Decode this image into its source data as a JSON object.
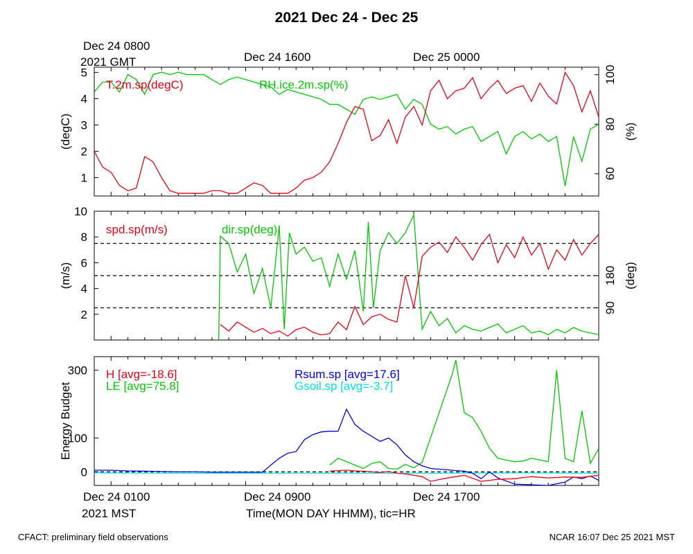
{
  "title": "2021 Dec 24 - Dec 25",
  "top_time_labels": [
    {
      "line1": "Dec 24 0800",
      "line2": "2021 GMT"
    },
    {
      "line1": "Dec 24 1600",
      "line2": ""
    },
    {
      "line1": "Dec 25 0000",
      "line2": ""
    }
  ],
  "bottom_time_labels": [
    {
      "line1": "Dec 24 0100",
      "line2": "2021 MST"
    },
    {
      "line1": "Dec 24 0900",
      "line2": ""
    },
    {
      "line1": "Dec 24 1700",
      "line2": ""
    }
  ],
  "xaxis_label": "Time(MON DAY HHMM), tic=HR",
  "footer_left": "CFACT: preliminary field observations",
  "footer_right": "NCAR 16:07 Dec 25 2021 MST",
  "colors": {
    "red": "#e8001a",
    "green": "#00c800",
    "blue": "#0000e0",
    "cyan": "#00e0e0"
  },
  "chart_data": [
    {
      "type": "line",
      "panel": "temperature_rh",
      "ylabel_left": "(degC)",
      "ylabel_right": "(%)",
      "ylim_left": [
        0.3,
        5.2
      ],
      "yticks_left": [
        1,
        2,
        3,
        4,
        5
      ],
      "ylim_right": [
        51,
        103
      ],
      "yticks_right": [
        60,
        80,
        100
      ],
      "series": [
        {
          "name": "T.2m.sp(degC)",
          "axis": "left",
          "color": "#e8001a",
          "x": [
            0,
            0.5,
            1,
            1.5,
            2,
            2.5,
            3,
            3.5,
            4,
            4.5,
            5,
            5.5,
            6,
            6.5,
            7,
            7.5,
            8,
            8.5,
            9,
            9.5,
            10,
            10.5,
            11,
            11.5,
            12,
            12.5,
            13,
            13.5,
            14,
            14.5,
            15,
            15.5,
            16,
            16.5,
            17,
            17.5,
            18,
            18.5,
            19,
            19.5,
            20,
            20.5,
            21,
            21.5,
            22,
            22.5,
            23,
            23.5,
            24,
            24.5,
            25,
            25.5,
            26,
            26.5,
            27,
            27.5,
            28,
            28.5,
            29,
            29.5,
            30
          ],
          "values": [
            2.0,
            1.4,
            1.2,
            0.7,
            0.5,
            0.6,
            1.8,
            1.6,
            1.0,
            0.5,
            0.4,
            0.4,
            0.4,
            0.4,
            0.5,
            0.5,
            0.4,
            0.4,
            0.6,
            0.8,
            0.7,
            0.4,
            0.4,
            0.4,
            0.6,
            0.9,
            1.0,
            1.2,
            1.6,
            2.3,
            3.1,
            3.7,
            3.6,
            2.4,
            2.6,
            3.2,
            2.3,
            3.3,
            3.7,
            3.0,
            4.3,
            4.7,
            4.0,
            4.3,
            4.4,
            4.8,
            4.0,
            4.4,
            4.7,
            4.2,
            4.4,
            4.5,
            3.9,
            4.6,
            4.1,
            3.8,
            5.0,
            4.5,
            3.5,
            4.3,
            3.3
          ]
        },
        {
          "name": "RH.ice.2m.sp(%)",
          "axis": "right",
          "color": "#00c800",
          "x": [
            0,
            0.5,
            1,
            1.5,
            2,
            2.5,
            3,
            3.5,
            4,
            4.5,
            5,
            5.5,
            6,
            6.5,
            7,
            7.5,
            8,
            8.5,
            9,
            9.5,
            10,
            10.5,
            11,
            11.5,
            12,
            12.5,
            13,
            13.5,
            14,
            14.5,
            15,
            15.5,
            16,
            16.5,
            17,
            17.5,
            18,
            18.5,
            19,
            19.5,
            20,
            20.5,
            21,
            21.5,
            22,
            22.5,
            23,
            23.5,
            24,
            24.5,
            25,
            25.5,
            26,
            26.5,
            27,
            27.5,
            28,
            28.5,
            29,
            29.5,
            30
          ],
          "values": [
            93,
            97,
            97,
            93,
            100,
            98,
            92,
            100,
            101,
            100,
            101,
            100,
            100,
            100,
            98,
            96,
            98,
            99,
            98,
            97,
            96,
            95,
            92,
            94,
            93,
            92,
            91,
            90,
            88,
            88,
            86,
            84,
            90,
            91,
            90,
            91,
            92,
            86,
            90,
            88,
            80,
            78,
            79,
            76,
            78,
            79,
            73,
            75,
            77,
            68,
            75,
            77,
            74,
            76,
            73,
            75,
            55,
            75,
            65,
            78,
            80
          ]
        }
      ]
    },
    {
      "type": "line",
      "panel": "wind",
      "ylabel_left": "(m/s)",
      "ylabel_right": "(deg)",
      "ylim_left": [
        0,
        10
      ],
      "yticks_left": [
        2,
        4,
        6,
        8,
        10
      ],
      "ylim_right": [
        0,
        360
      ],
      "yticks_right": [
        90,
        180
      ],
      "reference_lines_deg": [
        90,
        180,
        270
      ],
      "series": [
        {
          "name": "spd.sp(m/s)",
          "axis": "left",
          "color": "#e8001a",
          "x": [
            7.5,
            8,
            8.5,
            9,
            9.5,
            10,
            10.5,
            11,
            11.5,
            12,
            12.5,
            13,
            13.5,
            14,
            14.5,
            15,
            15.5,
            16,
            16.5,
            17,
            17.5,
            18,
            18.5,
            19,
            19.5,
            20,
            20.5,
            21,
            21.5,
            22,
            22.5,
            23,
            23.5,
            24,
            24.5,
            25,
            25.5,
            26,
            26.5,
            27,
            27.5,
            28,
            28.5,
            29,
            29.5,
            30
          ],
          "values": [
            1.2,
            0.7,
            1.4,
            1.0,
            0.6,
            0.9,
            0.5,
            0.7,
            0.3,
            0.8,
            1.0,
            0.6,
            0.4,
            0.5,
            1.4,
            0.8,
            2.6,
            1.2,
            1.8,
            2.0,
            1.6,
            1.4,
            5.0,
            2.5,
            6.5,
            7.2,
            7.6,
            6.8,
            8.0,
            7.2,
            6.2,
            7.4,
            8.2,
            6.0,
            7.4,
            6.4,
            8.0,
            6.6,
            7.5,
            5.5,
            7.0,
            6.2,
            7.8,
            6.6,
            7.5,
            8.2
          ]
        },
        {
          "name": "dir.sp(deg)",
          "axis": "right",
          "color": "#00c800",
          "x": [
            7.4,
            7.5,
            8,
            8.5,
            9,
            9.5,
            10,
            10.5,
            11,
            11.3,
            11.6,
            12,
            12.5,
            13,
            13.5,
            14,
            14.5,
            15,
            15.5,
            16,
            16.3,
            16.6,
            17,
            17.5,
            18,
            18.5,
            19,
            19.5,
            20,
            20.5,
            21,
            21.5,
            22,
            22.5,
            23,
            23.5,
            24,
            24.5,
            25,
            25.5,
            26,
            26.5,
            27,
            27.5,
            28,
            28.5,
            29,
            29.5,
            30
          ],
          "values": [
            0,
            290,
            270,
            190,
            240,
            130,
            200,
            90,
            320,
            30,
            300,
            240,
            260,
            220,
            230,
            150,
            240,
            170,
            250,
            80,
            330,
            90,
            250,
            300,
            270,
            300,
            350,
            30,
            80,
            40,
            60,
            20,
            40,
            30,
            25,
            35,
            45,
            20,
            30,
            40,
            20,
            25,
            15,
            30,
            20,
            35,
            25,
            20,
            15
          ]
        }
      ]
    },
    {
      "type": "line",
      "panel": "energy_budget",
      "ylabel": "Energy Budget",
      "ylim": [
        -40,
        340
      ],
      "yticks": [
        0,
        100,
        300
      ],
      "series": [
        {
          "name": "H [avg=-18.6]",
          "color": "#e8001a",
          "x": [
            14,
            14.5,
            15,
            15.5,
            16,
            16.5,
            17,
            17.5,
            18,
            18.5,
            19,
            19.5,
            20,
            21,
            22,
            23,
            24,
            25,
            26,
            27,
            28,
            29,
            30
          ],
          "values": [
            2,
            4,
            5,
            3,
            2,
            0,
            -2,
            1,
            -4,
            -6,
            -10,
            -14,
            -28,
            -18,
            -10,
            -28,
            -22,
            -20,
            -14,
            -18,
            -15,
            -16,
            -10
          ]
        },
        {
          "name": "LE [avg=75.8]",
          "color": "#00c800",
          "x": [
            14,
            14.5,
            15,
            15.5,
            16,
            16.5,
            17,
            17.5,
            18,
            18.5,
            19,
            19.5,
            21.3,
            21.5,
            22,
            22.5,
            23,
            23.5,
            24,
            24.5,
            25,
            25.5,
            26,
            26.5,
            27,
            27.5,
            28,
            28.5,
            29,
            29.5,
            30
          ],
          "values": [
            20,
            40,
            30,
            20,
            10,
            25,
            30,
            10,
            8,
            22,
            12,
            28,
            290,
            330,
            175,
            160,
            120,
            70,
            40,
            35,
            30,
            32,
            40,
            35,
            30,
            300,
            40,
            30,
            180,
            25,
            70
          ]
        },
        {
          "name": "Rsum.sp [avg=17.6]",
          "color": "#0000e0",
          "x": [
            0,
            1,
            2,
            3,
            4,
            5,
            6,
            7,
            8,
            9,
            10,
            10.5,
            11,
            11.5,
            12,
            12.5,
            13,
            13.5,
            14,
            14.5,
            15,
            15.5,
            16,
            16.5,
            17,
            17.5,
            18,
            18.5,
            19,
            19.5,
            20,
            20.5,
            21,
            21.5,
            22,
            22.5,
            23,
            23.5,
            24,
            25,
            26,
            27,
            28,
            28.5,
            29,
            29.5,
            30
          ],
          "values": [
            5,
            5,
            3,
            2,
            1,
            0,
            0,
            -1,
            -1,
            -1,
            -1,
            20,
            40,
            55,
            60,
            95,
            110,
            118,
            120,
            120,
            185,
            140,
            120,
            105,
            90,
            100,
            80,
            50,
            30,
            18,
            10,
            8,
            6,
            4,
            2,
            -4,
            -20,
            0,
            -18,
            -36,
            -38,
            -40,
            -30,
            -15,
            -20,
            -12,
            -25
          ]
        },
        {
          "name": "Gsoil.sp [avg=-3.7]",
          "color": "#00e0e0",
          "x": [
            0,
            5,
            10,
            15,
            20,
            25,
            30
          ],
          "values": [
            -3,
            -4,
            -4,
            -4,
            -4,
            -3,
            -4
          ]
        }
      ],
      "reference_lines": [
        0
      ]
    }
  ]
}
